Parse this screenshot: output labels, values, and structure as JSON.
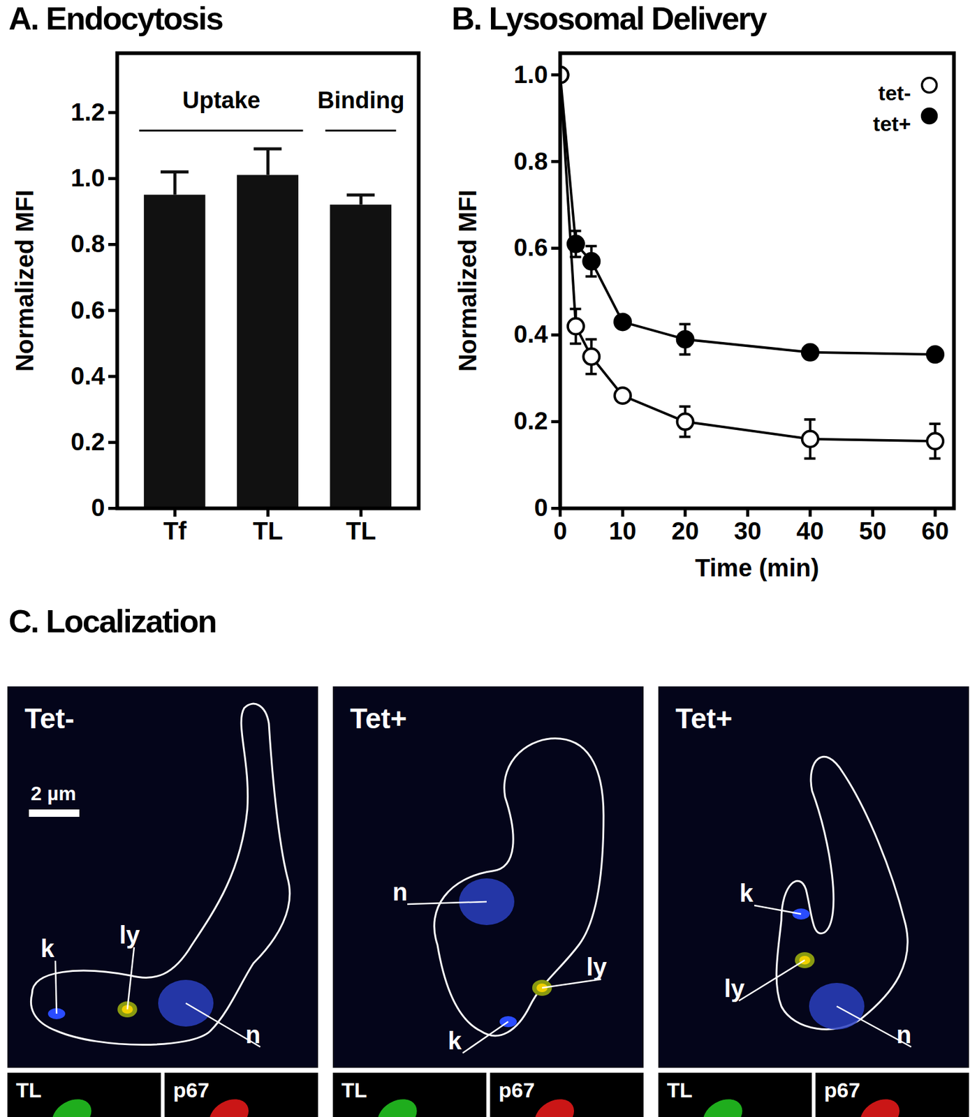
{
  "chart_data": [
    {
      "type": "bar",
      "title": "A. Endocytosis",
      "categories": [
        "Tf",
        "TL",
        "TL"
      ],
      "values": [
        0.95,
        1.01,
        0.92
      ],
      "errors": [
        0.07,
        0.08,
        0.03
      ],
      "color": "#111111",
      "groups": [
        {
          "label": "Uptake",
          "from": 0,
          "to": 1
        },
        {
          "label": "Binding",
          "from": 2,
          "to": 2
        }
      ],
      "ylabel": "Normalized MFI",
      "ylim": [
        0,
        1.38
      ],
      "yticks": [
        0,
        0.2,
        0.4,
        0.6,
        0.8,
        {
          "value": 1.0,
          "label": "1.0"
        },
        1.2
      ]
    },
    {
      "type": "line",
      "title": "B. Lysosomal Delivery",
      "x": [
        0,
        2.5,
        5,
        10,
        20,
        40,
        60
      ],
      "series": [
        {
          "name": "tet-",
          "color": "#000000",
          "marker": "open circle",
          "values": [
            1.0,
            0.42,
            0.35,
            0.26,
            0.2,
            0.16,
            0.155
          ],
          "errors": [
            0,
            0.04,
            0.04,
            0.01,
            0.035,
            0.045,
            0.04
          ]
        },
        {
          "name": "tet+",
          "color": "#000000",
          "marker": "filled circle",
          "values": [
            1.0,
            0.61,
            0.57,
            0.43,
            0.39,
            0.36,
            0.355
          ],
          "errors": [
            0,
            0.03,
            0.035,
            0.01,
            0.035,
            0.01,
            0.01
          ]
        }
      ],
      "legend": "top-right",
      "xlabel": "Time (min)",
      "ylabel": "Normalized MFI",
      "xlim": [
        0,
        63
      ],
      "xticks": [
        0,
        10,
        20,
        30,
        40,
        50,
        60
      ],
      "ylim": [
        0,
        1.05
      ],
      "yticks": [
        0,
        0.2,
        0.4,
        0.6,
        0.8,
        {
          "value": 1.0,
          "label": "1.0"
        }
      ]
    }
  ],
  "localization": {
    "title": "C. Localization",
    "scale_bar": "2 µm",
    "panels": [
      {
        "label": "Tet-",
        "structures": [
          "k",
          "ly",
          "n"
        ],
        "insets": [
          "TL",
          "p67"
        ]
      },
      {
        "label": "Tet+",
        "structures": [
          "n",
          "ly",
          "k"
        ],
        "insets": [
          "TL",
          "p67"
        ]
      },
      {
        "label": "Tet+",
        "structures": [
          "k",
          "ly",
          "n"
        ],
        "insets": [
          "TL",
          "p67"
        ]
      }
    ]
  }
}
